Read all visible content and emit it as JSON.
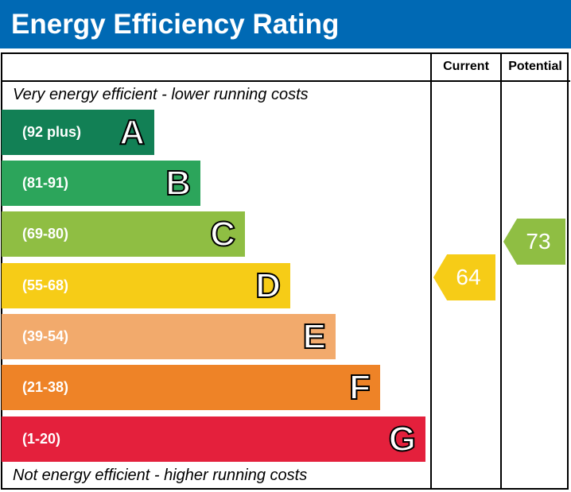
{
  "title": "Energy Efficiency Rating",
  "columns": {
    "current": "Current",
    "potential": "Potential"
  },
  "top_note": "Very energy efficient - lower running costs",
  "bottom_note": "Not energy efficient - higher running costs",
  "bands": [
    {
      "letter": "A",
      "range": "(92 plus)",
      "color": "#128055"
    },
    {
      "letter": "B",
      "range": "(81-91)",
      "color": "#2ca55b"
    },
    {
      "letter": "C",
      "range": "(69-80)",
      "color": "#8fbe43"
    },
    {
      "letter": "D",
      "range": "(55-68)",
      "color": "#f6cc17"
    },
    {
      "letter": "E",
      "range": "(39-54)",
      "color": "#f2aa6c"
    },
    {
      "letter": "F",
      "range": "(21-38)",
      "color": "#ee8327"
    },
    {
      "letter": "G",
      "range": "(1-20)",
      "color": "#e4203c"
    }
  ],
  "current": {
    "value": "64",
    "band": "D",
    "color": "#f6cc17"
  },
  "potential": {
    "value": "73",
    "band": "C",
    "color": "#8fbe43"
  }
}
